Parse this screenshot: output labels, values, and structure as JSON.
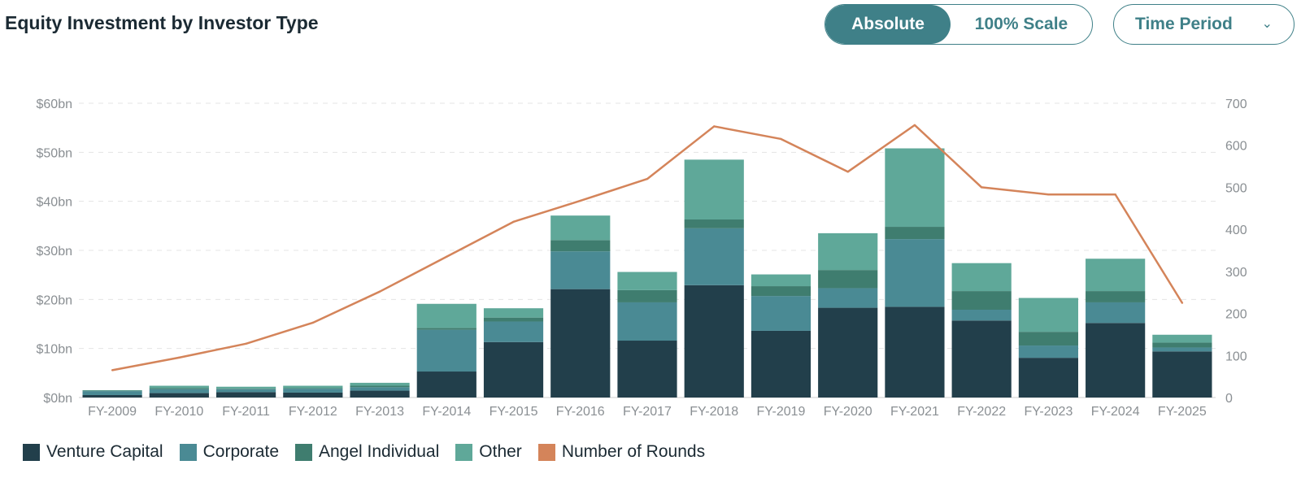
{
  "header": {
    "title": "Equity Investment by Investor Type",
    "toggle": {
      "absolute_label": "Absolute",
      "scale_label": "100% Scale",
      "active": "absolute"
    },
    "period_label": "Time Period",
    "period_icon": "chevron-down-icon"
  },
  "colors": {
    "Venture Capital": "#223f4b",
    "Corporate": "#4a8a94",
    "Angel Individual": "#3f7d6f",
    "Other": "#5fa899",
    "Number of Rounds": "#d4845a",
    "accent": "#3f8088"
  },
  "chart_data": {
    "type": "bar",
    "stacked": true,
    "categories": [
      "FY-2009",
      "FY-2010",
      "FY-2011",
      "FY-2012",
      "FY-2013",
      "FY-2014",
      "FY-2015",
      "FY-2016",
      "FY-2017",
      "FY-2018",
      "FY-2019",
      "FY-2020",
      "FY-2021",
      "FY-2022",
      "FY-2023",
      "FY-2024",
      "FY-2025"
    ],
    "series": [
      {
        "name": "Venture Capital",
        "type": "bar",
        "axis": "left",
        "values": [
          0.5,
          0.9,
          1.1,
          1.0,
          1.4,
          5.3,
          11.3,
          22.1,
          11.6,
          22.9,
          13.6,
          18.3,
          18.5,
          15.7,
          8.1,
          15.2,
          9.4
        ]
      },
      {
        "name": "Corporate",
        "type": "bar",
        "axis": "left",
        "values": [
          0.8,
          0.8,
          0.6,
          0.8,
          0.7,
          8.5,
          4.2,
          7.7,
          7.8,
          11.6,
          7.1,
          4.0,
          13.8,
          2.2,
          2.5,
          4.2,
          0.8
        ]
      },
      {
        "name": "Angel Individual",
        "type": "bar",
        "axis": "left",
        "values": [
          0.1,
          0.2,
          0.1,
          0.1,
          0.3,
          0.4,
          0.8,
          2.3,
          2.5,
          1.8,
          2.0,
          3.7,
          2.5,
          3.8,
          2.8,
          2.3,
          1.0
        ]
      },
      {
        "name": "Other",
        "type": "bar",
        "axis": "left",
        "values": [
          0.1,
          0.5,
          0.4,
          0.5,
          0.6,
          4.9,
          1.9,
          5.0,
          3.7,
          12.2,
          2.4,
          7.5,
          16.0,
          5.7,
          6.9,
          6.6,
          1.6
        ]
      },
      {
        "name": "Number of Rounds",
        "type": "line",
        "axis": "right",
        "values": [
          65,
          95,
          128,
          178,
          252,
          335,
          418,
          468,
          520,
          645,
          615,
          537,
          648,
          500,
          483,
          483,
          225
        ]
      }
    ],
    "y_left": {
      "ticks": [
        "$0bn",
        "$10bn",
        "$20bn",
        "$30bn",
        "$40bn",
        "$50bn",
        "$60bn"
      ],
      "min": 0,
      "max": 60,
      "step": 10
    },
    "y_right": {
      "ticks": [
        "0",
        "100",
        "200",
        "300",
        "400",
        "500",
        "600",
        "700"
      ],
      "min": 0,
      "max": 700,
      "step": 100
    },
    "grid": true,
    "legend_position": "bottom-left",
    "legend": [
      "Venture Capital",
      "Corporate",
      "Angel Individual",
      "Other",
      "Number of Rounds"
    ]
  }
}
